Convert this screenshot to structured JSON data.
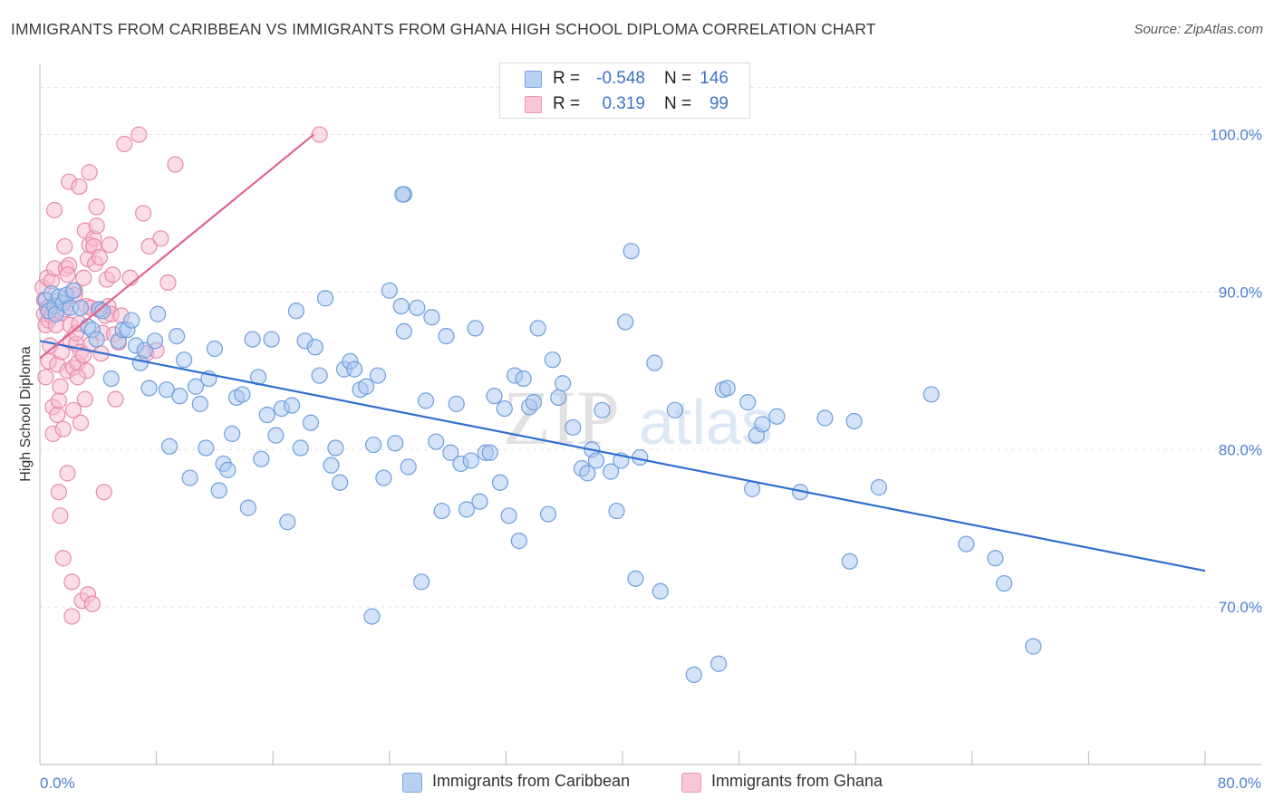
{
  "title": "IMMIGRANTS FROM CARIBBEAN VS IMMIGRANTS FROM GHANA HIGH SCHOOL DIPLOMA CORRELATION CHART",
  "source": "Source: ZipAtlas.com",
  "watermark": {
    "zip": "ZIP",
    "atlas": "atlas"
  },
  "stats": {
    "row1": {
      "r_label": "R =",
      "r_value": "-0.548",
      "n_label": "N =",
      "n_value": "146"
    },
    "row2": {
      "r_label": "R =",
      "r_value": "0.319",
      "n_label": "N =",
      "n_value": "99"
    }
  },
  "legend": {
    "caribbean": "Immigrants from Caribbean",
    "ghana": "Immigrants from Ghana"
  },
  "colors": {
    "caribbean_fill": "#aac8f0",
    "caribbean_stroke": "#6f9ede",
    "caribbean_line": "#2f6fd0",
    "ghana_fill": "#f7bcd0",
    "ghana_stroke": "#e88aab",
    "ghana_line": "#e0628c",
    "tick_text": "#4a7fd0",
    "grid": "#e3e3e3"
  },
  "chart_data": {
    "type": "scatter",
    "title": "IMMIGRANTS FROM CARIBBEAN VS IMMIGRANTS FROM GHANA HIGH SCHOOL DIPLOMA CORRELATION CHART",
    "xlabel": "",
    "ylabel": "High School Diploma",
    "xlim": [
      0,
      80
    ],
    "ylim": [
      60,
      104
    ],
    "x_tick_labels": [
      "0.0%",
      "80.0%"
    ],
    "y_ticks": [
      70,
      80,
      90,
      100
    ],
    "y_tick_labels": [
      "70.0%",
      "80.0%",
      "90.0%",
      "100.0%"
    ],
    "grid": true,
    "legend_position": "bottom-center",
    "series": [
      {
        "name": "Immigrants from Caribbean",
        "color": "#aac8f0",
        "trend": {
          "x": [
            0,
            80
          ],
          "y": [
            86.9,
            72.3
          ]
        },
        "points": [
          [
            0.4,
            89.5
          ],
          [
            0.6,
            88.8
          ],
          [
            0.8,
            89.9
          ],
          [
            1.0,
            89.1
          ],
          [
            1.1,
            88.6
          ],
          [
            1.3,
            89.7
          ],
          [
            1.6,
            89.3
          ],
          [
            1.8,
            89.8
          ],
          [
            2.1,
            89.0
          ],
          [
            2.3,
            90.1
          ],
          [
            2.8,
            89.0
          ],
          [
            3.3,
            87.8
          ],
          [
            3.6,
            87.6
          ],
          [
            3.9,
            87.0
          ],
          [
            4.1,
            88.9
          ],
          [
            4.3,
            88.8
          ],
          [
            4.9,
            84.5
          ],
          [
            5.4,
            86.9
          ],
          [
            5.7,
            87.6
          ],
          [
            6.0,
            87.6
          ],
          [
            6.3,
            88.2
          ],
          [
            6.6,
            86.6
          ],
          [
            6.9,
            85.5
          ],
          [
            7.2,
            86.3
          ],
          [
            7.5,
            83.9
          ],
          [
            7.9,
            86.9
          ],
          [
            8.1,
            88.6
          ],
          [
            8.7,
            83.8
          ],
          [
            8.9,
            80.2
          ],
          [
            9.4,
            87.2
          ],
          [
            9.6,
            83.4
          ],
          [
            9.9,
            85.7
          ],
          [
            10.3,
            78.2
          ],
          [
            10.7,
            84.0
          ],
          [
            11.0,
            82.9
          ],
          [
            11.4,
            80.1
          ],
          [
            11.6,
            84.5
          ],
          [
            12.0,
            86.4
          ],
          [
            12.3,
            77.4
          ],
          [
            12.6,
            79.1
          ],
          [
            12.9,
            78.7
          ],
          [
            13.2,
            81.0
          ],
          [
            13.5,
            83.3
          ],
          [
            13.9,
            83.5
          ],
          [
            14.3,
            76.3
          ],
          [
            14.6,
            87.0
          ],
          [
            15.0,
            84.6
          ],
          [
            15.2,
            79.4
          ],
          [
            15.6,
            82.2
          ],
          [
            15.9,
            87.0
          ],
          [
            16.2,
            80.9
          ],
          [
            16.6,
            82.6
          ],
          [
            17.0,
            75.4
          ],
          [
            17.3,
            82.8
          ],
          [
            17.6,
            88.8
          ],
          [
            17.9,
            80.1
          ],
          [
            18.2,
            86.9
          ],
          [
            18.6,
            81.7
          ],
          [
            18.9,
            86.5
          ],
          [
            19.2,
            84.7
          ],
          [
            19.6,
            89.6
          ],
          [
            20.0,
            79.0
          ],
          [
            20.3,
            80.1
          ],
          [
            20.6,
            77.9
          ],
          [
            20.9,
            85.1
          ],
          [
            21.3,
            85.6
          ],
          [
            21.6,
            85.1
          ],
          [
            22.0,
            83.8
          ],
          [
            22.4,
            84.0
          ],
          [
            22.8,
            69.4
          ],
          [
            22.9,
            80.3
          ],
          [
            23.2,
            84.7
          ],
          [
            23.6,
            78.2
          ],
          [
            24.0,
            90.1
          ],
          [
            24.4,
            80.4
          ],
          [
            24.8,
            89.1
          ],
          [
            25.0,
            87.5
          ],
          [
            25.3,
            78.9
          ],
          [
            25.9,
            89.0
          ],
          [
            26.2,
            71.6
          ],
          [
            26.5,
            83.1
          ],
          [
            26.9,
            88.4
          ],
          [
            27.2,
            80.5
          ],
          [
            27.6,
            76.1
          ],
          [
            27.9,
            87.2
          ],
          [
            28.2,
            79.8
          ],
          [
            28.6,
            82.9
          ],
          [
            28.9,
            79.1
          ],
          [
            29.3,
            76.2
          ],
          [
            29.6,
            79.3
          ],
          [
            29.9,
            87.7
          ],
          [
            30.2,
            76.7
          ],
          [
            30.6,
            79.8
          ],
          [
            30.9,
            79.8
          ],
          [
            31.2,
            83.4
          ],
          [
            31.6,
            77.9
          ],
          [
            31.9,
            82.6
          ],
          [
            32.2,
            75.8
          ],
          [
            32.6,
            84.7
          ],
          [
            32.9,
            74.2
          ],
          [
            33.2,
            84.5
          ],
          [
            33.6,
            82.7
          ],
          [
            33.9,
            83.0
          ],
          [
            34.2,
            87.7
          ],
          [
            34.9,
            75.9
          ],
          [
            35.2,
            85.7
          ],
          [
            35.6,
            83.3
          ],
          [
            35.9,
            84.2
          ],
          [
            36.6,
            81.4
          ],
          [
            37.2,
            78.8
          ],
          [
            37.6,
            78.5
          ],
          [
            37.9,
            80.0
          ],
          [
            38.2,
            79.3
          ],
          [
            38.6,
            82.5
          ],
          [
            39.2,
            78.6
          ],
          [
            39.6,
            76.1
          ],
          [
            39.9,
            79.3
          ],
          [
            40.2,
            88.1
          ],
          [
            40.6,
            92.6
          ],
          [
            40.9,
            71.8
          ],
          [
            41.2,
            79.5
          ],
          [
            42.2,
            85.5
          ],
          [
            42.6,
            71.0
          ],
          [
            43.6,
            82.5
          ],
          [
            44.9,
            65.7
          ],
          [
            46.6,
            66.4
          ],
          [
            46.9,
            83.8
          ],
          [
            47.2,
            83.9
          ],
          [
            48.6,
            83.0
          ],
          [
            48.9,
            77.5
          ],
          [
            49.2,
            80.9
          ],
          [
            49.6,
            81.6
          ],
          [
            50.6,
            82.1
          ],
          [
            52.2,
            77.3
          ],
          [
            53.9,
            82.0
          ],
          [
            55.6,
            72.9
          ],
          [
            55.9,
            81.8
          ],
          [
            57.6,
            77.6
          ],
          [
            61.2,
            83.5
          ],
          [
            63.6,
            74.0
          ],
          [
            65.6,
            73.1
          ],
          [
            66.2,
            71.5
          ],
          [
            68.2,
            67.5
          ],
          [
            25.0,
            96.2
          ],
          [
            24.9,
            96.2
          ]
        ]
      },
      {
        "name": "Immigrants from Ghana",
        "color": "#f7bcd0",
        "trend": {
          "x": [
            0,
            18.8
          ],
          "y": [
            85.8,
            100.0
          ]
        },
        "points": [
          [
            0.2,
            90.3
          ],
          [
            0.3,
            89.5
          ],
          [
            0.3,
            88.6
          ],
          [
            0.4,
            87.9
          ],
          [
            0.4,
            84.6
          ],
          [
            0.5,
            89.0
          ],
          [
            0.5,
            90.9
          ],
          [
            0.6,
            88.2
          ],
          [
            0.6,
            85.6
          ],
          [
            0.7,
            89.1
          ],
          [
            0.7,
            86.6
          ],
          [
            0.8,
            90.7
          ],
          [
            0.8,
            88.5
          ],
          [
            0.9,
            82.7
          ],
          [
            0.9,
            81.0
          ],
          [
            1.0,
            95.2
          ],
          [
            1.0,
            91.5
          ],
          [
            1.1,
            89.4
          ],
          [
            1.1,
            87.9
          ],
          [
            1.2,
            85.4
          ],
          [
            1.2,
            82.2
          ],
          [
            1.3,
            83.1
          ],
          [
            1.3,
            77.3
          ],
          [
            1.4,
            75.8
          ],
          [
            1.4,
            84.0
          ],
          [
            1.5,
            88.7
          ],
          [
            1.5,
            86.2
          ],
          [
            1.6,
            81.3
          ],
          [
            1.6,
            73.1
          ],
          [
            1.7,
            92.9
          ],
          [
            1.7,
            88.9
          ],
          [
            1.8,
            89.6
          ],
          [
            1.8,
            91.5
          ],
          [
            1.9,
            85.0
          ],
          [
            1.9,
            78.5
          ],
          [
            2.0,
            97.0
          ],
          [
            2.0,
            91.7
          ],
          [
            2.1,
            87.9
          ],
          [
            2.1,
            86.9
          ],
          [
            2.2,
            71.6
          ],
          [
            2.2,
            69.4
          ],
          [
            2.3,
            85.2
          ],
          [
            2.3,
            82.5
          ],
          [
            2.4,
            90.1
          ],
          [
            2.4,
            89.8
          ],
          [
            2.5,
            86.7
          ],
          [
            2.5,
            87.4
          ],
          [
            2.6,
            85.5
          ],
          [
            2.7,
            96.7
          ],
          [
            2.7,
            88.0
          ],
          [
            2.8,
            86.2
          ],
          [
            2.8,
            81.7
          ],
          [
            2.9,
            70.4
          ],
          [
            3.0,
            90.9
          ],
          [
            3.0,
            86.0
          ],
          [
            3.1,
            93.9
          ],
          [
            3.1,
            83.2
          ],
          [
            3.2,
            89.1
          ],
          [
            3.2,
            85.0
          ],
          [
            3.3,
            92.1
          ],
          [
            3.3,
            70.8
          ],
          [
            3.4,
            97.6
          ],
          [
            3.4,
            93.0
          ],
          [
            3.5,
            89.0
          ],
          [
            3.5,
            86.7
          ],
          [
            3.6,
            70.2
          ],
          [
            3.7,
            93.4
          ],
          [
            3.7,
            92.9
          ],
          [
            3.8,
            91.8
          ],
          [
            3.9,
            95.4
          ],
          [
            3.9,
            94.2
          ],
          [
            4.0,
            88.9
          ],
          [
            4.1,
            92.2
          ],
          [
            4.2,
            86.1
          ],
          [
            4.3,
            87.4
          ],
          [
            4.4,
            77.3
          ],
          [
            4.5,
            88.5
          ],
          [
            4.6,
            90.8
          ],
          [
            4.7,
            89.1
          ],
          [
            4.8,
            93.0
          ],
          [
            4.9,
            88.6
          ],
          [
            5.0,
            91.1
          ],
          [
            5.1,
            87.3
          ],
          [
            5.2,
            83.2
          ],
          [
            5.4,
            86.8
          ],
          [
            5.6,
            88.5
          ],
          [
            5.8,
            99.4
          ],
          [
            6.2,
            90.9
          ],
          [
            6.8,
            100.0
          ],
          [
            7.1,
            95.0
          ],
          [
            7.3,
            86.1
          ],
          [
            7.5,
            92.9
          ],
          [
            8.0,
            86.3
          ],
          [
            8.3,
            93.4
          ],
          [
            8.8,
            90.6
          ],
          [
            9.3,
            98.1
          ],
          [
            19.2,
            100.0
          ],
          [
            1.9,
            91.1
          ],
          [
            2.6,
            84.6
          ]
        ]
      }
    ]
  }
}
